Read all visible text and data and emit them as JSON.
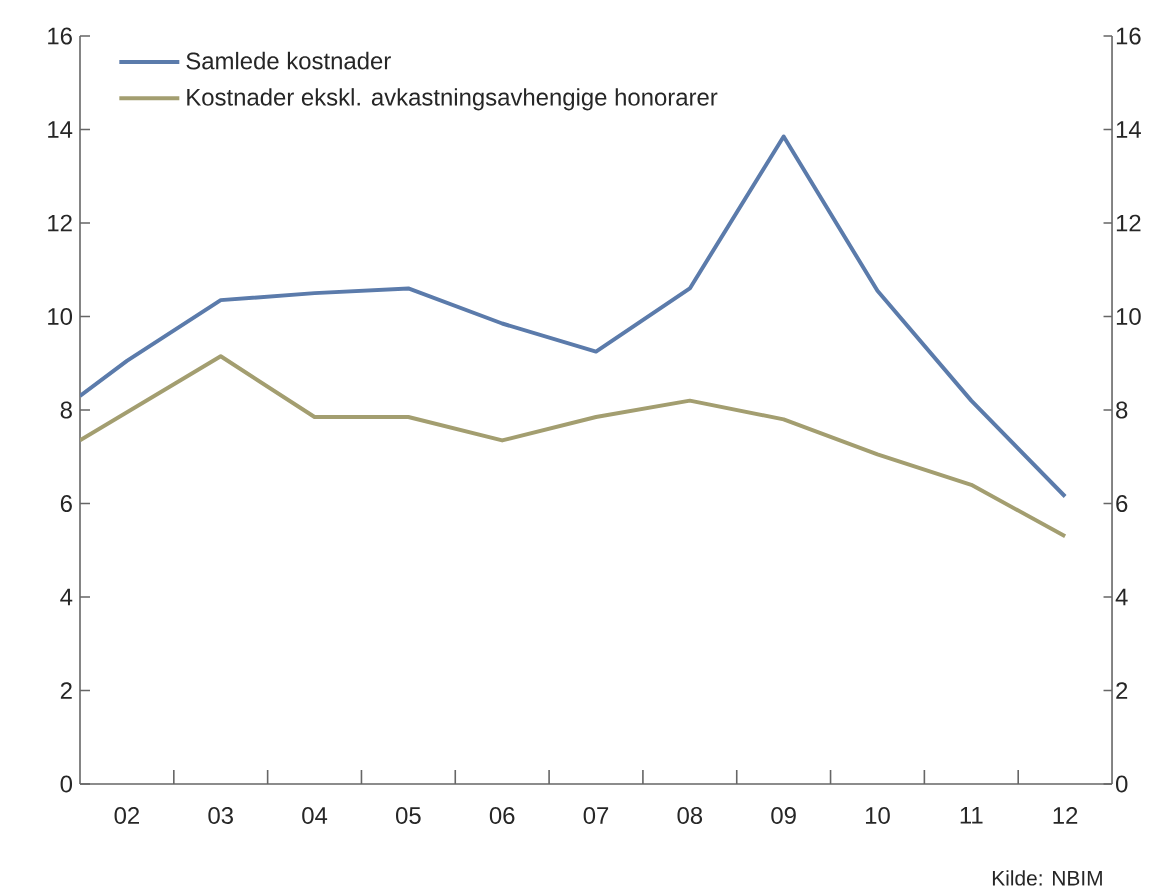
{
  "chart_data": {
    "type": "line",
    "series": [
      {
        "name": "Samlede kostnader",
        "color": "#5b7bab",
        "x": [
          1.5,
          2,
          3,
          4,
          5,
          6,
          7,
          8,
          9,
          10,
          11,
          12
        ],
        "values": [
          8.3,
          9.05,
          10.35,
          10.5,
          10.6,
          9.85,
          9.25,
          10.6,
          13.85,
          10.55,
          8.2,
          6.15
        ]
      },
      {
        "name": "Kostnader ekskl. avkastningsavhengige honorarer",
        "color": "#a39e70",
        "x": [
          1.5,
          3,
          4,
          5,
          6,
          7,
          8,
          9,
          10,
          11,
          12
        ],
        "values": [
          7.35,
          9.15,
          7.85,
          7.85,
          7.35,
          7.85,
          8.2,
          7.8,
          7.05,
          6.4,
          5.3
        ]
      }
    ],
    "xlim": [
      1.5,
      12.5
    ],
    "xticks": [
      {
        "value": 2,
        "label": "02"
      },
      {
        "value": 3,
        "label": "03"
      },
      {
        "value": 4,
        "label": "04"
      },
      {
        "value": 5,
        "label": "05"
      },
      {
        "value": 6,
        "label": "06"
      },
      {
        "value": 7,
        "label": "07"
      },
      {
        "value": 8,
        "label": "08"
      },
      {
        "value": 9,
        "label": "09"
      },
      {
        "value": 10,
        "label": "10"
      },
      {
        "value": 11,
        "label": "11"
      },
      {
        "value": 12,
        "label": "12"
      }
    ],
    "ylim": [
      0,
      16
    ],
    "yticks": [
      0,
      2,
      4,
      6,
      8,
      10,
      12,
      14,
      16
    ],
    "y2lim": [
      0,
      16
    ],
    "y2ticks": [
      0,
      2,
      4,
      6,
      8,
      10,
      12,
      14,
      16
    ],
    "grid": false,
    "legend": "top left",
    "marker": "none",
    "line_style": "solid",
    "annotations": [
      "Kilde: NBIM"
    ]
  }
}
